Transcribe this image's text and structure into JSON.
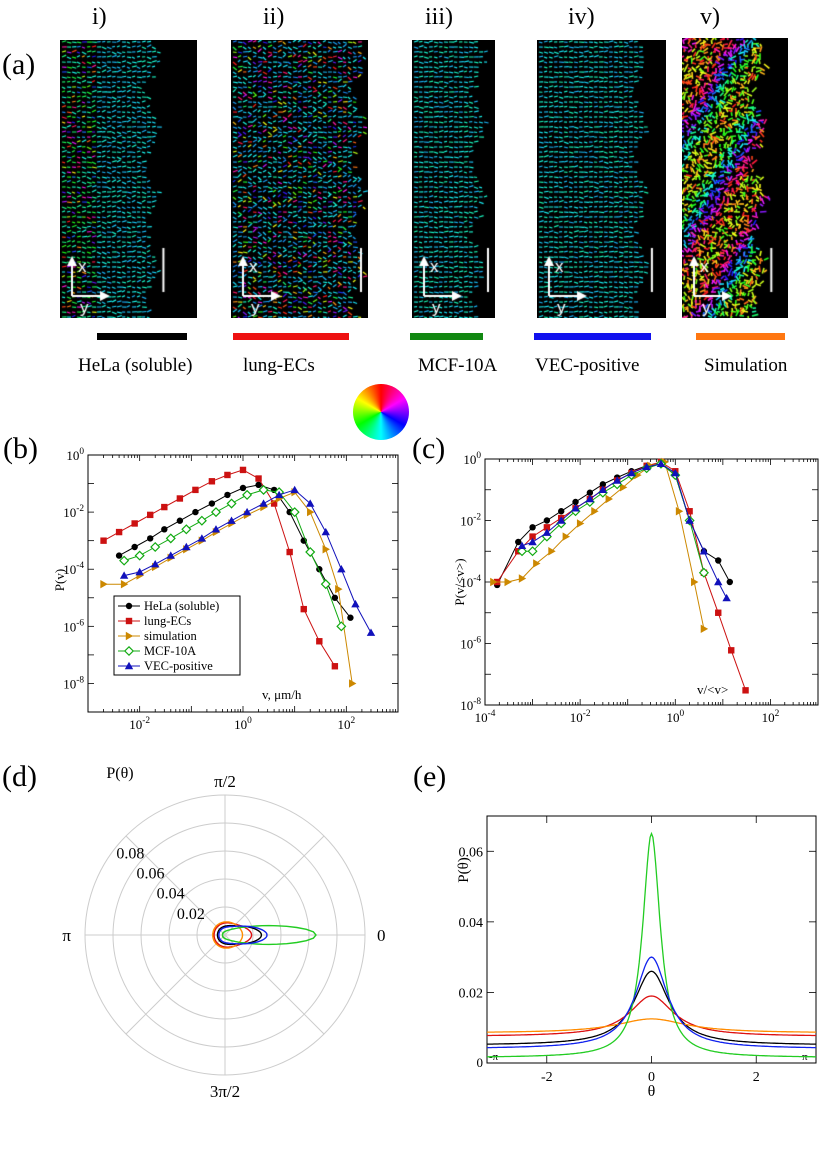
{
  "panel_a": {
    "label": "(a)",
    "panels": [
      {
        "numeral": "i)",
        "caption": "HeLa (soluble)",
        "color": "#000000"
      },
      {
        "numeral": "ii)",
        "caption": "lung-ECs",
        "color": "#ee1111"
      },
      {
        "numeral": "iii)",
        "caption": "MCF-10A",
        "color": "#118811"
      },
      {
        "numeral": "iv)",
        "caption": "VEC-positive",
        "color": "#1111ee"
      },
      {
        "numeral": "v)",
        "caption": "Simulation",
        "color": "#ff7711"
      }
    ],
    "axis_x": "x",
    "axis_y": "y"
  },
  "chart_data": [
    {
      "id": "b",
      "panel_label": "(b)",
      "type": "line",
      "xscale": "log",
      "yscale": "log",
      "xlim": [
        0.001,
        1000
      ],
      "ylim": [
        1e-09,
        1
      ],
      "xlabel": "v, μm/h",
      "ylabel": "P(v)",
      "xticks": [
        {
          "v": 0.01,
          "l": "10-2"
        },
        {
          "v": 1,
          "l": "100"
        },
        {
          "v": 100,
          "l": "102"
        }
      ],
      "yticks": [
        {
          "v": 1,
          "l": "100"
        },
        {
          "v": 0.01,
          "l": "10-2"
        },
        {
          "v": 0.0001,
          "l": "10-4"
        },
        {
          "v": 1e-06,
          "l": "10-6"
        },
        {
          "v": 1e-08,
          "l": "10-8"
        }
      ],
      "legend_position": "bottom-left",
      "series": [
        {
          "name": "HeLa (soluble)",
          "color": "#000000",
          "marker": "circle",
          "x": [
            0.004,
            0.008,
            0.016,
            0.03,
            0.06,
            0.12,
            0.25,
            0.5,
            1,
            2,
            4,
            8,
            15,
            30,
            60,
            120
          ],
          "y": [
            0.0003,
            0.0006,
            0.0012,
            0.0025,
            0.005,
            0.01,
            0.02,
            0.04,
            0.07,
            0.09,
            0.06,
            0.01,
            0.001,
            0.0001,
            1e-05,
            2e-06
          ]
        },
        {
          "name": "lung-ECs",
          "color": "#cc1111",
          "marker": "square",
          "x": [
            0.002,
            0.004,
            0.008,
            0.016,
            0.03,
            0.06,
            0.12,
            0.25,
            0.5,
            1,
            2,
            4,
            8,
            15,
            30,
            60
          ],
          "y": [
            0.001,
            0.002,
            0.004,
            0.008,
            0.015,
            0.03,
            0.06,
            0.12,
            0.2,
            0.3,
            0.15,
            0.02,
            0.0004,
            4e-06,
            3e-07,
            4e-08
          ]
        },
        {
          "name": "simulation",
          "color": "#cc8800",
          "marker": "triangle-right",
          "x": [
            0.002,
            0.005,
            0.01,
            0.02,
            0.04,
            0.08,
            0.16,
            0.3,
            0.6,
            1.2,
            2.5,
            5,
            10,
            20,
            40,
            70,
            130
          ],
          "y": [
            3e-05,
            3e-05,
            6e-05,
            0.00012,
            0.00025,
            0.0005,
            0.001,
            0.002,
            0.004,
            0.008,
            0.015,
            0.03,
            0.05,
            0.01,
            0.0005,
            2e-05,
            1e-08
          ]
        },
        {
          "name": "MCF-10A",
          "color": "#11aa11",
          "marker": "diamond",
          "x": [
            0.005,
            0.01,
            0.02,
            0.04,
            0.08,
            0.16,
            0.3,
            0.6,
            1.2,
            2.5,
            5,
            10,
            20,
            40,
            80
          ],
          "y": [
            0.0002,
            0.0003,
            0.0006,
            0.0012,
            0.0025,
            0.005,
            0.01,
            0.02,
            0.04,
            0.06,
            0.05,
            0.01,
            0.0004,
            3e-05,
            1e-06
          ]
        },
        {
          "name": "VEC-positive",
          "color": "#1111bb",
          "marker": "triangle-up",
          "x": [
            0.005,
            0.01,
            0.02,
            0.04,
            0.08,
            0.16,
            0.3,
            0.6,
            1.2,
            2.5,
            5,
            10,
            20,
            40,
            80,
            150,
            300
          ],
          "y": [
            6e-05,
            8e-05,
            0.00015,
            0.0003,
            0.0006,
            0.0012,
            0.0025,
            0.005,
            0.01,
            0.02,
            0.04,
            0.06,
            0.02,
            0.002,
            0.0001,
            6e-06,
            6e-07
          ]
        }
      ]
    },
    {
      "id": "c",
      "panel_label": "(c)",
      "type": "line",
      "xscale": "log",
      "yscale": "log",
      "xlim": [
        0.0001,
        1000
      ],
      "ylim": [
        1e-08,
        1
      ],
      "xlabel": "v/<v>",
      "ylabel": "P(v/<v>)",
      "xticks": [
        {
          "v": 0.0001,
          "l": "10-4"
        },
        {
          "v": 0.01,
          "l": "10-2"
        },
        {
          "v": 1,
          "l": "100"
        },
        {
          "v": 100,
          "l": "102"
        }
      ],
      "yticks": [
        {
          "v": 1,
          "l": "100"
        },
        {
          "v": 0.01,
          "l": "10-2"
        },
        {
          "v": 0.0001,
          "l": "10-4"
        },
        {
          "v": 1e-06,
          "l": "10-6"
        },
        {
          "v": 1e-08,
          "l": "10-8"
        }
      ],
      "series": [
        {
          "name": "HeLa (soluble)",
          "color": "#000000",
          "marker": "circle",
          "x": [
            0.00018,
            0.0005,
            0.001,
            0.002,
            0.004,
            0.008,
            0.016,
            0.03,
            0.06,
            0.12,
            0.25,
            0.5,
            1,
            2,
            4,
            8,
            14
          ],
          "y": [
            8e-05,
            0.002,
            0.006,
            0.01,
            0.02,
            0.04,
            0.08,
            0.15,
            0.25,
            0.4,
            0.6,
            0.7,
            0.3,
            0.01,
            0.001,
            0.0005,
            0.0001
          ]
        },
        {
          "name": "lung-ECs",
          "color": "#cc1111",
          "marker": "square",
          "x": [
            0.00018,
            0.0005,
            0.001,
            0.002,
            0.004,
            0.008,
            0.016,
            0.03,
            0.06,
            0.12,
            0.25,
            0.5,
            1,
            2,
            4,
            8,
            15,
            30
          ],
          "y": [
            0.0001,
            0.001,
            0.003,
            0.006,
            0.012,
            0.025,
            0.05,
            0.1,
            0.2,
            0.35,
            0.6,
            0.8,
            0.4,
            0.02,
            0.0002,
            1e-05,
            6e-07,
            3e-08
          ]
        },
        {
          "name": "simulation",
          "color": "#cc8800",
          "marker": "triangle-right",
          "x": [
            0.00015,
            0.0003,
            0.0006,
            0.0012,
            0.0025,
            0.005,
            0.01,
            0.02,
            0.04,
            0.08,
            0.16,
            0.3,
            0.6,
            1.2,
            2.5,
            4
          ],
          "y": [
            0.0001,
            0.0001,
            0.00013,
            0.0004,
            0.001,
            0.003,
            0.008,
            0.02,
            0.05,
            0.12,
            0.3,
            0.6,
            0.8,
            0.02,
            0.0001,
            3e-06
          ]
        },
        {
          "name": "MCF-10A",
          "color": "#11aa11",
          "marker": "diamond",
          "x": [
            0.0006,
            0.001,
            0.002,
            0.004,
            0.008,
            0.016,
            0.03,
            0.06,
            0.12,
            0.25,
            0.5,
            1,
            2,
            4
          ],
          "y": [
            0.001,
            0.001,
            0.003,
            0.008,
            0.02,
            0.04,
            0.08,
            0.15,
            0.3,
            0.5,
            0.7,
            0.3,
            0.01,
            0.0002
          ]
        },
        {
          "name": "VEC-positive",
          "color": "#1111bb",
          "marker": "triangle-up",
          "x": [
            0.0006,
            0.001,
            0.002,
            0.004,
            0.008,
            0.016,
            0.03,
            0.06,
            0.12,
            0.25,
            0.5,
            1,
            2,
            4,
            8,
            12
          ],
          "y": [
            0.0015,
            0.002,
            0.004,
            0.01,
            0.025,
            0.05,
            0.1,
            0.2,
            0.35,
            0.55,
            0.7,
            0.35,
            0.01,
            0.001,
            0.0001,
            3e-05
          ]
        }
      ]
    },
    {
      "id": "d",
      "panel_label": "(d)",
      "type": "polar",
      "ylabel": "P(θ)",
      "radial_ticks": [
        0.02,
        0.04,
        0.06,
        0.08
      ],
      "radial_tick_labels": [
        "0.02",
        "0.04",
        "0.06",
        "0.08"
      ],
      "r_max": 0.1,
      "angle_labels": {
        "top": "π/2",
        "left": "π",
        "right": "0",
        "bottom": "3π/2"
      },
      "series": [
        {
          "name": "HeLa (soluble)",
          "color": "#000000",
          "peak": 0.026,
          "base": 0.005,
          "width": 0.6
        },
        {
          "name": "lung-ECs",
          "color": "#dd1111",
          "peak": 0.019,
          "base": 0.0075,
          "width": 0.75
        },
        {
          "name": "simulation",
          "color": "#ff8c00",
          "peak": 0.0125,
          "base": 0.0085,
          "width": 1.2
        },
        {
          "name": "MCF-10A",
          "color": "#22cc22",
          "peak": 0.065,
          "base": 0.0015,
          "width": 0.3
        },
        {
          "name": "VEC-positive",
          "color": "#1122ee",
          "peak": 0.03,
          "base": 0.004,
          "width": 0.55
        }
      ]
    },
    {
      "id": "e",
      "panel_label": "(e)",
      "type": "line",
      "xlim": [
        -3.1416,
        3.1416
      ],
      "ylim": [
        0,
        0.07
      ],
      "xlabel": "θ",
      "ylabel": "P(θ)",
      "xticks": [
        {
          "v": -2,
          "l": "-2"
        },
        {
          "v": 0,
          "l": "0"
        },
        {
          "v": 2,
          "l": "2"
        }
      ],
      "yticks": [
        {
          "v": 0.02,
          "l": "0.02"
        },
        {
          "v": 0.04,
          "l": "0.04"
        },
        {
          "v": 0.06,
          "l": "0.06"
        }
      ],
      "edge_labels": {
        "left": "-π",
        "right": "π",
        "zero": "0"
      },
      "series": [
        {
          "name": "HeLa (soluble)",
          "color": "#000000",
          "peak": 0.026,
          "base": 0.005,
          "width": 0.6
        },
        {
          "name": "lung-ECs",
          "color": "#dd1111",
          "peak": 0.019,
          "base": 0.0075,
          "width": 0.75
        },
        {
          "name": "simulation",
          "color": "#ff8c00",
          "peak": 0.0125,
          "base": 0.0085,
          "width": 1.2
        },
        {
          "name": "MCF-10A",
          "color": "#22cc22",
          "peak": 0.065,
          "base": 0.0015,
          "width": 0.3
        },
        {
          "name": "VEC-positive",
          "color": "#1122ee",
          "peak": 0.03,
          "base": 0.004,
          "width": 0.55
        }
      ]
    }
  ]
}
